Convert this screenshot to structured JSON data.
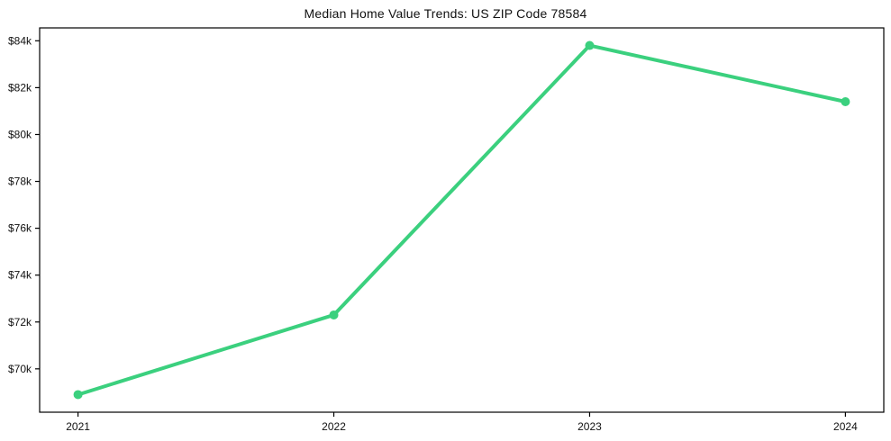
{
  "chart_data": {
    "type": "line",
    "title": "Median Home Value Trends: US ZIP Code 78584",
    "x": [
      2021,
      2022,
      2023,
      2024
    ],
    "xtick_labels": [
      "2021",
      "2022",
      "2023",
      "2024"
    ],
    "series": [
      {
        "name": "median-home-value",
        "values": [
          68900,
          72300,
          83800,
          81400
        ],
        "color": "#3bd07e",
        "marker": "circle"
      }
    ],
    "ytick_values": [
      70000,
      72000,
      74000,
      76000,
      78000,
      80000,
      82000,
      84000
    ],
    "ytick_labels": [
      "$70k",
      "$72k",
      "$74k",
      "$76k",
      "$78k",
      "$80k",
      "$82k",
      "$84k"
    ],
    "xlim": [
      2020.85,
      2024.15
    ],
    "ylim": [
      68150,
      84550
    ],
    "grid": false,
    "legend_position": "none",
    "xlabel": "",
    "ylabel": ""
  },
  "colors": {
    "axis": "#000000",
    "background": "#ffffff",
    "text": "#111111"
  }
}
